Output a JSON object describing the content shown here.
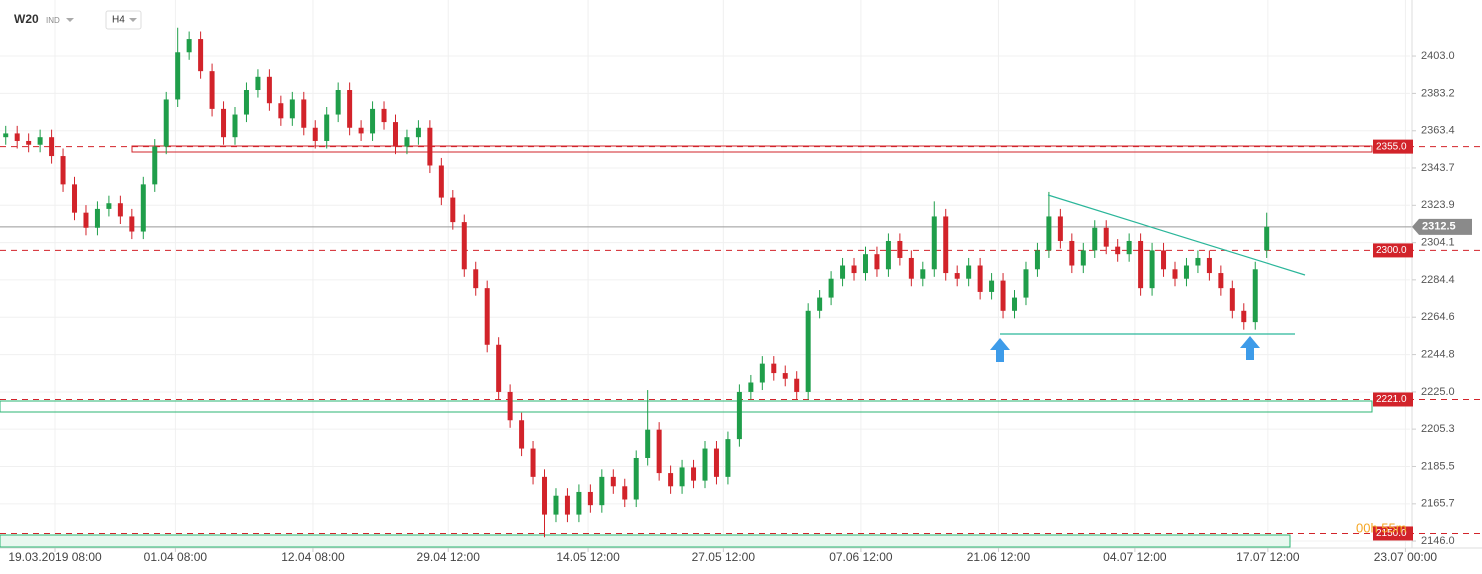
{
  "chart_data": {
    "type": "candlestick",
    "symbol": "W20",
    "market": "IND",
    "interval": "H4",
    "timer": "00h 55m",
    "up_color": "#1f9e4a",
    "down_color": "#d2232a",
    "xlim": [
      -0.5,
      122.5
    ],
    "xticks": [
      {
        "value": 4.3,
        "label": "19.03.2019 08:00"
      },
      {
        "value": 14.8,
        "label": "01.04 08:00"
      },
      {
        "value": 26.8,
        "label": "12.04 08:00"
      },
      {
        "value": 38.6,
        "label": "29.04 12:00"
      },
      {
        "value": 50.8,
        "label": "14.05 12:00"
      },
      {
        "value": 62.6,
        "label": "27.05 12:00"
      },
      {
        "value": 74.6,
        "label": "07.06 12:00"
      },
      {
        "value": 86.6,
        "label": "21.06 12:00"
      },
      {
        "value": 98.5,
        "label": "04.07 12:00"
      },
      {
        "value": 110.1,
        "label": "17.07 12:00"
      },
      {
        "value": 122.1,
        "label": "23.07 00:00"
      }
    ],
    "ylim": [
      2142.3,
      2432.7
    ],
    "yticks": [
      {
        "value": 2403,
        "label": "2403.0"
      },
      2383.2,
      2363.4,
      2343.7,
      2323.9,
      2304.1,
      2284.4,
      2264.6,
      2244.8,
      {
        "value": 2225,
        "label": "2225.0"
      },
      2205.3,
      2185.5,
      2165.7,
      {
        "value": 2146,
        "label": "2146.0"
      }
    ],
    "grid": true,
    "levels": [
      {
        "value": 2355,
        "label": "2355.0"
      },
      {
        "value": 2300,
        "label": "2300.0"
      },
      {
        "value": 2221,
        "label": "2221.0"
      },
      {
        "value": 2150,
        "label": "2150.0"
      }
    ],
    "open": [
      2360,
      2362,
      2358,
      2356,
      2360,
      2350,
      2335,
      2320,
      2312,
      2322,
      2325,
      2318,
      2310,
      2335,
      2355,
      2380,
      2405,
      2412,
      2395,
      2375,
      2360,
      2372,
      2385,
      2392,
      2378,
      2370,
      2380,
      2365,
      2358,
      2372,
      2385,
      2365,
      2362,
      2375,
      2368,
      2355,
      2360,
      2365,
      2345,
      2328,
      2315,
      2290,
      2280,
      2250,
      2225,
      2210,
      2195,
      2180,
      2160,
      2170,
      2160,
      2172,
      2165,
      2180,
      2175,
      2168,
      2190,
      2205,
      2182,
      2175,
      2185,
      2178,
      2195,
      2180,
      2200,
      2225,
      2230,
      2240,
      2235,
      2232,
      2225,
      2268,
      2275,
      2285,
      2292,
      2288,
      2298,
      2290,
      2305,
      2296,
      2285,
      2290,
      2318,
      2288,
      2285,
      2292,
      2278,
      2284,
      2268,
      2275,
      2290,
      2300,
      2318,
      2305,
      2292,
      2300,
      2312,
      2302,
      2298,
      2305,
      2280,
      2300,
      2290,
      2285,
      2292,
      2296,
      2288,
      2280,
      2268,
      2262,
      2300
    ],
    "high": [
      2366,
      2366,
      2362,
      2364,
      2364,
      2354,
      2339,
      2324,
      2326,
      2329,
      2329,
      2322,
      2339,
      2359,
      2384,
      2418,
      2416,
      2416,
      2399,
      2379,
      2376,
      2389,
      2396,
      2396,
      2382,
      2384,
      2384,
      2369,
      2376,
      2389,
      2389,
      2369,
      2379,
      2379,
      2372,
      2364,
      2369,
      2369,
      2349,
      2332,
      2319,
      2294,
      2284,
      2254,
      2229,
      2214,
      2199,
      2184,
      2174,
      2174,
      2176,
      2176,
      2184,
      2184,
      2179,
      2194,
      2226,
      2209,
      2186,
      2189,
      2189,
      2199,
      2199,
      2204,
      2229,
      2234,
      2244,
      2244,
      2239,
      2236,
      2272,
      2279,
      2289,
      2296,
      2296,
      2302,
      2302,
      2309,
      2309,
      2300,
      2294,
      2326,
      2322,
      2292,
      2296,
      2296,
      2288,
      2288,
      2279,
      2294,
      2304,
      2331,
      2322,
      2309,
      2304,
      2316,
      2316,
      2306,
      2309,
      2309,
      2304,
      2304,
      2294,
      2296,
      2300,
      2300,
      2292,
      2284,
      2272,
      2294,
      2320
    ],
    "low": [
      2356,
      2354,
      2352,
      2352,
      2346,
      2331,
      2316,
      2308,
      2308,
      2318,
      2314,
      2306,
      2306,
      2331,
      2351,
      2376,
      2401,
      2391,
      2371,
      2356,
      2356,
      2368,
      2381,
      2374,
      2366,
      2366,
      2361,
      2354,
      2354,
      2368,
      2361,
      2358,
      2358,
      2364,
      2351,
      2351,
      2356,
      2341,
      2324,
      2311,
      2286,
      2276,
      2246,
      2221,
      2206,
      2191,
      2176,
      2148,
      2156,
      2156,
      2156,
      2161,
      2161,
      2171,
      2164,
      2164,
      2186,
      2178,
      2171,
      2171,
      2174,
      2174,
      2176,
      2176,
      2196,
      2221,
      2226,
      2231,
      2228,
      2221,
      2221,
      2264,
      2271,
      2281,
      2284,
      2284,
      2286,
      2286,
      2292,
      2281,
      2281,
      2286,
      2284,
      2281,
      2281,
      2274,
      2274,
      2264,
      2264,
      2271,
      2286,
      2296,
      2301,
      2288,
      2288,
      2296,
      2298,
      2294,
      2294,
      2276,
      2276,
      2286,
      2281,
      2281,
      2288,
      2284,
      2276,
      2264,
      2258,
      2258,
      2296
    ],
    "close": [
      2362,
      2358,
      2356,
      2360,
      2350,
      2335,
      2320,
      2312,
      2322,
      2325,
      2318,
      2310,
      2335,
      2355,
      2380,
      2405,
      2412,
      2395,
      2375,
      2360,
      2372,
      2385,
      2392,
      2378,
      2370,
      2380,
      2365,
      2358,
      2372,
      2385,
      2365,
      2362,
      2375,
      2368,
      2355,
      2360,
      2365,
      2345,
      2328,
      2315,
      2290,
      2280,
      2250,
      2225,
      2210,
      2195,
      2180,
      2160,
      2170,
      2160,
      2172,
      2165,
      2180,
      2175,
      2168,
      2190,
      2205,
      2182,
      2175,
      2185,
      2178,
      2195,
      2180,
      2200,
      2225,
      2230,
      2240,
      2235,
      2232,
      2225,
      2268,
      2275,
      2285,
      2292,
      2288,
      2298,
      2290,
      2305,
      2296,
      2285,
      2290,
      2318,
      2288,
      2285,
      2292,
      2278,
      2284,
      2268,
      2275,
      2290,
      2300,
      2318,
      2305,
      2292,
      2300,
      2312,
      2302,
      2298,
      2305,
      2280,
      2300,
      2290,
      2285,
      2292,
      2296,
      2288,
      2280,
      2268,
      2262,
      2290,
      2312.5
    ]
  }
}
